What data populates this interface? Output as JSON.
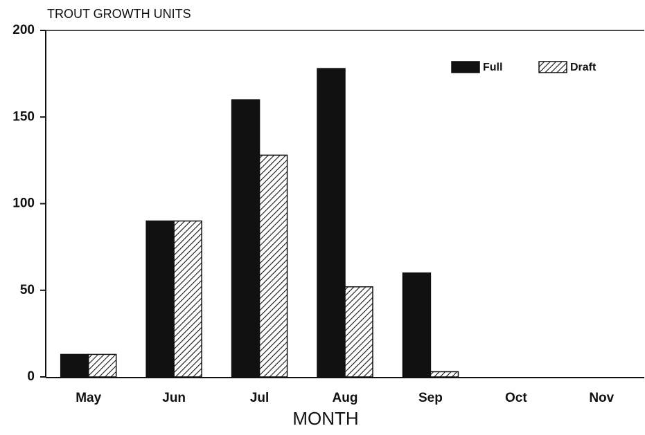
{
  "chart_data": {
    "type": "bar",
    "title": "TROUT GROWTH UNITS",
    "x_label": "MONTH",
    "categories": [
      "May",
      "Jun",
      "Jul",
      "Aug",
      "Sep",
      "Oct",
      "Nov"
    ],
    "series": [
      {
        "name": "Full",
        "color": "#111111",
        "hatch": false,
        "values": [
          13,
          90,
          160,
          178,
          60,
          0,
          0
        ]
      },
      {
        "name": "Draft",
        "color": "#111111",
        "hatch": true,
        "values": [
          13,
          90,
          128,
          52,
          3,
          0,
          0
        ]
      }
    ],
    "ylim": [
      0,
      200
    ],
    "yticks": [
      0,
      50,
      100,
      150,
      200
    ],
    "grid": false,
    "legend": "upper right"
  }
}
